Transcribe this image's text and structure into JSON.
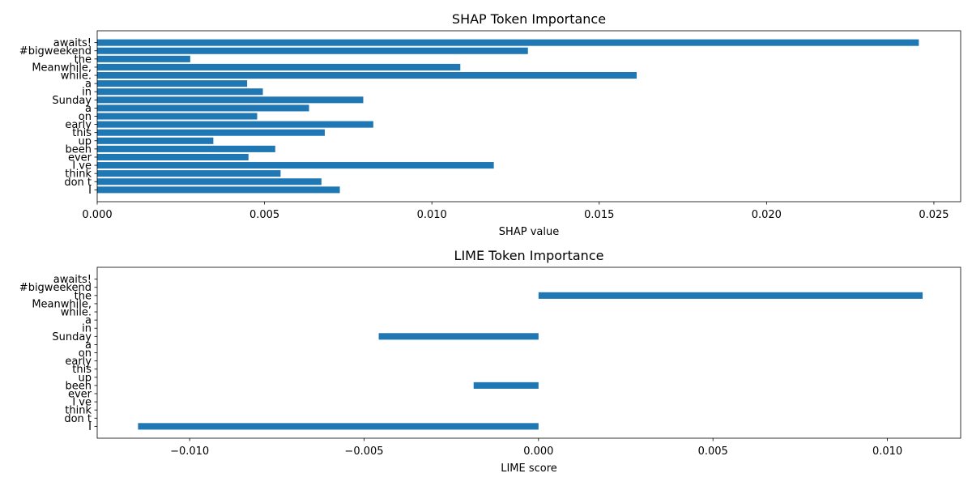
{
  "chart_data": [
    {
      "type": "bar",
      "orientation": "horizontal",
      "title": "SHAP Token Importance",
      "xlabel": "SHAP value",
      "ylabel": "",
      "xlim": [
        0.0,
        0.0258
      ],
      "xticks": [
        0.0,
        0.005,
        0.01,
        0.015,
        0.02,
        0.025
      ],
      "xtick_labels": [
        "0.000",
        "0.005",
        "0.010",
        "0.015",
        "0.020",
        "0.025"
      ],
      "color": "#1f77b4",
      "grid": false,
      "categories": [
        "I",
        "don t",
        "think",
        "I ve",
        "ever",
        "been",
        "up",
        "this",
        "early",
        "on",
        "a",
        "Sunday",
        "in",
        "a",
        "while.",
        "Meanwhile,",
        "the",
        "#bigweekend",
        "awaits!"
      ],
      "values": [
        0.00725,
        0.0067,
        0.00548,
        0.01185,
        0.00452,
        0.00532,
        0.00347,
        0.0068,
        0.00825,
        0.00478,
        0.00633,
        0.00795,
        0.00495,
        0.00448,
        0.01612,
        0.01085,
        0.00278,
        0.01287,
        0.02455
      ]
    },
    {
      "type": "bar",
      "orientation": "horizontal",
      "title": "LIME Token Importance",
      "xlabel": "LIME score",
      "ylabel": "",
      "xlim": [
        -0.01265,
        0.0121
      ],
      "xticks": [
        -0.01,
        -0.005,
        0.0,
        0.005,
        0.01
      ],
      "xtick_labels": [
        "−0.010",
        "−0.005",
        "0.000",
        "0.005",
        "0.010"
      ],
      "color": "#1f77b4",
      "grid": false,
      "categories": [
        "I",
        "don t",
        "think",
        "I ve",
        "ever",
        "been",
        "up",
        "this",
        "early",
        "on",
        "a",
        "Sunday",
        "in",
        "a",
        "while.",
        "Meanwhile,",
        "the",
        "#bigweekend",
        "awaits!"
      ],
      "values": [
        -0.01148,
        0.0,
        0.0,
        0.0,
        0.0,
        -0.00186,
        0.0,
        0.0,
        0.0,
        0.0,
        0.0,
        -0.00458,
        0.0,
        0.0,
        0.0,
        0.0,
        0.01101,
        0.0,
        0.0
      ]
    }
  ]
}
